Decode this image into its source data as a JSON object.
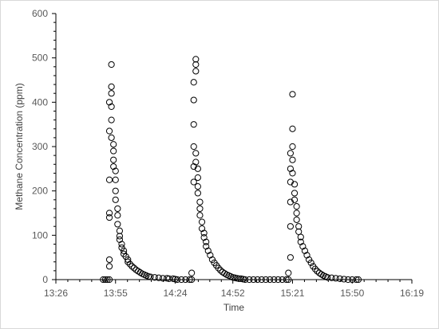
{
  "chart_data": {
    "type": "scatter",
    "title": "",
    "xlabel": "Time",
    "ylabel": "Methane Concentration (ppm)",
    "x_ticks": [
      "13:26",
      "13:55",
      "14:24",
      "14:52",
      "15:21",
      "15:50",
      "16:19"
    ],
    "y_ticks": [
      "0",
      "100",
      "200",
      "300",
      "400",
      "500",
      "600"
    ],
    "xlim": [
      "13:26",
      "16:19"
    ],
    "ylim": [
      0,
      600
    ],
    "grid": false,
    "legend": "none",
    "marker": "open-circle",
    "marker_color": "#000000",
    "series": [
      {
        "points": [
          [
            "13:49",
            0
          ],
          [
            "13:50",
            0
          ],
          [
            "13:51",
            0
          ],
          [
            "13:52",
            0
          ],
          [
            "13:52",
            30
          ],
          [
            "13:52",
            45
          ],
          [
            "13:52",
            140
          ],
          [
            "13:52",
            150
          ],
          [
            "13:52",
            225
          ],
          [
            "13:52",
            335
          ],
          [
            "13:52",
            400
          ],
          [
            "13:53",
            435
          ],
          [
            "13:53",
            485
          ],
          [
            "13:53",
            420
          ],
          [
            "13:53",
            390
          ],
          [
            "13:53",
            360
          ],
          [
            "13:53",
            320
          ],
          [
            "13:54",
            305
          ],
          [
            "13:54",
            290
          ],
          [
            "13:54",
            270
          ],
          [
            "13:54",
            255
          ],
          [
            "13:55",
            245
          ],
          [
            "13:55",
            225
          ],
          [
            "13:55",
            200
          ],
          [
            "13:55",
            180
          ],
          [
            "13:56",
            160
          ],
          [
            "13:56",
            145
          ],
          [
            "13:56",
            125
          ],
          [
            "13:57",
            110
          ],
          [
            "13:57",
            98
          ],
          [
            "13:57",
            90
          ],
          [
            "13:58",
            80
          ],
          [
            "13:58",
            72
          ],
          [
            "13:59",
            65
          ],
          [
            "13:59",
            58
          ],
          [
            "14:00",
            52
          ],
          [
            "14:01",
            45
          ],
          [
            "14:01",
            40
          ],
          [
            "14:02",
            35
          ],
          [
            "14:03",
            30
          ],
          [
            "14:04",
            26
          ],
          [
            "14:05",
            22
          ],
          [
            "14:06",
            19
          ],
          [
            "14:07",
            16
          ],
          [
            "14:08",
            13
          ],
          [
            "14:09",
            11
          ],
          [
            "14:10",
            9
          ],
          [
            "14:11",
            7
          ],
          [
            "14:12",
            6
          ],
          [
            "14:14",
            5
          ],
          [
            "14:16",
            4
          ],
          [
            "14:18",
            3
          ],
          [
            "14:20",
            3
          ],
          [
            "14:21",
            2
          ],
          [
            "14:23",
            2
          ],
          [
            "14:24",
            1
          ],
          [
            "14:25",
            0
          ],
          [
            "14:27",
            0
          ],
          [
            "14:29",
            0
          ],
          [
            "14:31",
            0
          ],
          [
            "14:32",
            0
          ],
          [
            "14:32",
            15
          ],
          [
            "14:33",
            220
          ],
          [
            "14:33",
            255
          ],
          [
            "14:33",
            300
          ],
          [
            "14:33",
            350
          ],
          [
            "14:33",
            405
          ],
          [
            "14:33",
            445
          ],
          [
            "14:34",
            470
          ],
          [
            "14:34",
            485
          ],
          [
            "14:34",
            497
          ],
          [
            "14:34",
            285
          ],
          [
            "14:34",
            265
          ],
          [
            "14:35",
            250
          ],
          [
            "14:35",
            230
          ],
          [
            "14:35",
            210
          ],
          [
            "14:35",
            195
          ],
          [
            "14:36",
            175
          ],
          [
            "14:36",
            160
          ],
          [
            "14:36",
            145
          ],
          [
            "14:37",
            130
          ],
          [
            "14:37",
            115
          ],
          [
            "14:38",
            105
          ],
          [
            "14:38",
            95
          ],
          [
            "14:39",
            85
          ],
          [
            "14:39",
            75
          ],
          [
            "14:40",
            65
          ],
          [
            "14:41",
            55
          ],
          [
            "14:42",
            45
          ],
          [
            "14:43",
            38
          ],
          [
            "14:44",
            32
          ],
          [
            "14:45",
            26
          ],
          [
            "14:46",
            21
          ],
          [
            "14:47",
            17
          ],
          [
            "14:48",
            14
          ],
          [
            "14:49",
            11
          ],
          [
            "14:50",
            9
          ],
          [
            "14:51",
            7
          ],
          [
            "14:52",
            5
          ],
          [
            "14:53",
            4
          ],
          [
            "14:54",
            3
          ],
          [
            "14:55",
            2
          ],
          [
            "14:56",
            2
          ],
          [
            "14:57",
            1
          ],
          [
            "14:58",
            0
          ],
          [
            "15:00",
            0
          ],
          [
            "15:02",
            0
          ],
          [
            "15:04",
            0
          ],
          [
            "15:06",
            0
          ],
          [
            "15:08",
            0
          ],
          [
            "15:10",
            0
          ],
          [
            "15:12",
            0
          ],
          [
            "15:14",
            0
          ],
          [
            "15:16",
            0
          ],
          [
            "15:18",
            0
          ],
          [
            "15:19",
            0
          ],
          [
            "15:19",
            15
          ],
          [
            "15:20",
            50
          ],
          [
            "15:20",
            120
          ],
          [
            "15:20",
            175
          ],
          [
            "15:20",
            220
          ],
          [
            "15:20",
            250
          ],
          [
            "15:20",
            285
          ],
          [
            "15:21",
            300
          ],
          [
            "15:21",
            340
          ],
          [
            "15:21",
            418
          ],
          [
            "15:21",
            270
          ],
          [
            "15:21",
            240
          ],
          [
            "15:22",
            215
          ],
          [
            "15:22",
            195
          ],
          [
            "15:22",
            180
          ],
          [
            "15:23",
            165
          ],
          [
            "15:23",
            150
          ],
          [
            "15:23",
            135
          ],
          [
            "15:24",
            120
          ],
          [
            "15:24",
            108
          ],
          [
            "15:25",
            96
          ],
          [
            "15:25",
            85
          ],
          [
            "15:26",
            75
          ],
          [
            "15:27",
            65
          ],
          [
            "15:28",
            55
          ],
          [
            "15:29",
            45
          ],
          [
            "15:30",
            38
          ],
          [
            "15:31",
            30
          ],
          [
            "15:32",
            24
          ],
          [
            "15:33",
            19
          ],
          [
            "15:34",
            15
          ],
          [
            "15:35",
            12
          ],
          [
            "15:36",
            9
          ],
          [
            "15:37",
            7
          ],
          [
            "15:38",
            5
          ],
          [
            "15:40",
            4
          ],
          [
            "15:42",
            3
          ],
          [
            "15:44",
            2
          ],
          [
            "15:46",
            1
          ],
          [
            "15:48",
            0
          ],
          [
            "15:50",
            0
          ],
          [
            "15:52",
            0
          ],
          [
            "15:53",
            0
          ]
        ]
      }
    ]
  }
}
